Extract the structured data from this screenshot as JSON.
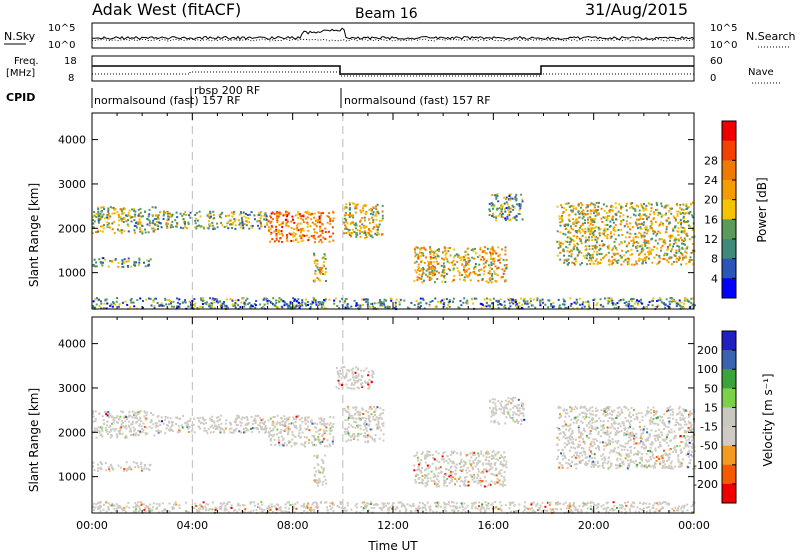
{
  "header": {
    "station": "Adak West (fitACF)",
    "beam": "Beam 16",
    "date": "31/Aug/2015"
  },
  "top_panels": {
    "nsky_label": "N.Sky",
    "nsky_ticks": [
      "10^5",
      "10^0"
    ],
    "nsearch_label": "N.Search",
    "freq_label_1": "Freq.",
    "freq_label_2": "[MHz]",
    "freq_ticks": [
      "18",
      "8"
    ],
    "nave_ticks": [
      "60",
      "0"
    ],
    "nave_label": "Nave",
    "cpid_label": "CPID",
    "cpid_segments": [
      {
        "name": "normalsound (fast) 157 RF",
        "start_hour": 0,
        "end_hour": 4.0
      },
      {
        "name": "rbsp 200 RF",
        "start_hour": 4.0,
        "end_hour": 10.0
      },
      {
        "name": "normalsound (fast) 157 RF",
        "start_hour": 10.0,
        "end_hour": 24
      }
    ]
  },
  "colors": {
    "power": [
      "#0000ff",
      "#2a56b8",
      "#3f8a78",
      "#5c9a5c",
      "#f6c300",
      "#f59c00",
      "#f07a00",
      "#f44000",
      "#ee0000"
    ],
    "velocity": [
      "#ee0000",
      "#f65a00",
      "#f49a20",
      "#cfcac3",
      "#c8c8c0",
      "#7bd24a",
      "#3aa33a",
      "#3a64b0",
      "#2020c0"
    ],
    "dashed_line": "#bbbbbb"
  },
  "chart_data": [
    {
      "type": "heatmap",
      "panel": "power",
      "ylabel": "Slant Range [km]",
      "xlabel": "",
      "xlim": [
        0,
        24
      ],
      "ylim": [
        180,
        4600
      ],
      "y_ticks": [
        "1000",
        "2000",
        "3000",
        "4000"
      ],
      "colorbar_label": "Power [dB]",
      "colorbar_ticks": [
        "4",
        "8",
        "12",
        "16",
        "20",
        "24",
        "28"
      ],
      "echo_regions": [
        {
          "x0": 0.0,
          "x1": 2.5,
          "y0": 1900,
          "y1": 2500,
          "level": 0.45
        },
        {
          "x0": 2.5,
          "x1": 7.0,
          "y0": 2000,
          "y1": 2400,
          "level": 0.4
        },
        {
          "x0": 7.0,
          "x1": 9.6,
          "y0": 1700,
          "y1": 2400,
          "level": 0.7
        },
        {
          "x0": 0.0,
          "x1": 2.3,
          "y0": 1150,
          "y1": 1350,
          "level": 0.35
        },
        {
          "x0": 8.8,
          "x1": 9.3,
          "y0": 800,
          "y1": 1500,
          "level": 0.5
        },
        {
          "x0": 10.0,
          "x1": 11.6,
          "y0": 1800,
          "y1": 2600,
          "level": 0.5
        },
        {
          "x0": 12.8,
          "x1": 16.5,
          "y0": 800,
          "y1": 1600,
          "level": 0.55
        },
        {
          "x0": 15.8,
          "x1": 17.2,
          "y0": 2200,
          "y1": 2800,
          "level": 0.35
        },
        {
          "x0": 18.5,
          "x1": 24.0,
          "y0": 1200,
          "y1": 2600,
          "level": 0.5
        },
        {
          "x0": 0.0,
          "x1": 24.0,
          "y0": 200,
          "y1": 450,
          "level": 0.3
        }
      ]
    },
    {
      "type": "heatmap",
      "panel": "velocity",
      "ylabel": "Slant Range [km]",
      "xlabel": "Time UT",
      "xlim": [
        0,
        24
      ],
      "ylim": [
        180,
        4600
      ],
      "x_ticks": [
        "00:00",
        "04:00",
        "08:00",
        "12:00",
        "16:00",
        "20:00",
        "00:00"
      ],
      "y_ticks": [
        "1000",
        "2000",
        "3000",
        "4000"
      ],
      "colorbar_label": "Velocity [m s⁻¹]",
      "colorbar_ticks": [
        "200",
        "100",
        "50",
        "15",
        "-15",
        "-50",
        "-100",
        "-200"
      ],
      "echo_regions": [
        {
          "x0": 0.0,
          "x1": 2.5,
          "y0": 1900,
          "y1": 2500,
          "level": 0.5
        },
        {
          "x0": 2.5,
          "x1": 7.0,
          "y0": 2000,
          "y1": 2400,
          "level": 0.5
        },
        {
          "x0": 7.0,
          "x1": 9.6,
          "y0": 1700,
          "y1": 2400,
          "level": 0.5
        },
        {
          "x0": 0.0,
          "x1": 2.3,
          "y0": 1150,
          "y1": 1350,
          "level": 0.5
        },
        {
          "x0": 8.8,
          "x1": 9.3,
          "y0": 800,
          "y1": 1500,
          "level": 0.5
        },
        {
          "x0": 9.7,
          "x1": 11.2,
          "y0": 3000,
          "y1": 3500,
          "level": 0.05
        },
        {
          "x0": 10.0,
          "x1": 11.6,
          "y0": 1800,
          "y1": 2600,
          "level": 0.5
        },
        {
          "x0": 12.8,
          "x1": 16.5,
          "y0": 800,
          "y1": 1600,
          "level": 0.3
        },
        {
          "x0": 15.8,
          "x1": 17.2,
          "y0": 2200,
          "y1": 2800,
          "level": 0.5
        },
        {
          "x0": 18.5,
          "x1": 24.0,
          "y0": 1200,
          "y1": 2600,
          "level": 0.5
        },
        {
          "x0": 0.0,
          "x1": 24.0,
          "y0": 200,
          "y1": 450,
          "level": 0.4
        }
      ]
    }
  ]
}
